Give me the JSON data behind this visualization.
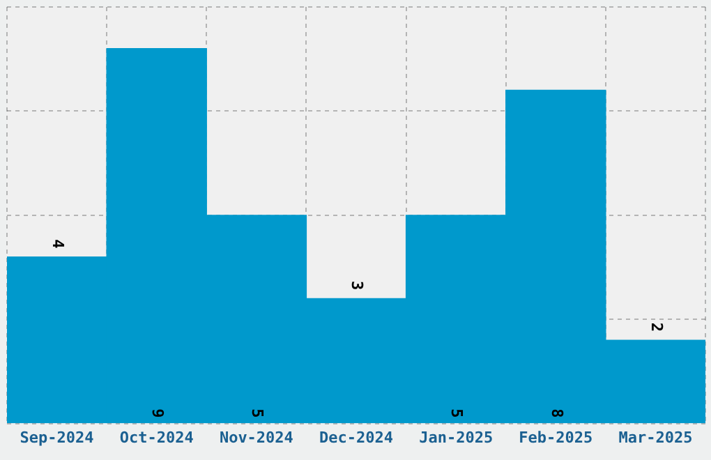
{
  "chart_data": {
    "type": "bar",
    "categories": [
      "Sep-2024",
      "Oct-2024",
      "Nov-2024",
      "Dec-2024",
      "Jan-2025",
      "Feb-2025",
      "Mar-2025"
    ],
    "values": [
      4,
      9,
      5,
      3,
      5,
      8,
      2
    ],
    "color": "#0099cc",
    "ylim": [
      0,
      10
    ],
    "yticks": [
      {
        "value": 0,
        "label": null
      },
      {
        "value": 2.5,
        "label": null
      },
      {
        "value": 5,
        "label": null
      },
      {
        "value": 7.5,
        "label": null
      },
      {
        "value": 10,
        "label": null
      }
    ],
    "grid": true,
    "data_labels": true,
    "tick_labels": "x",
    "legend": false
  }
}
